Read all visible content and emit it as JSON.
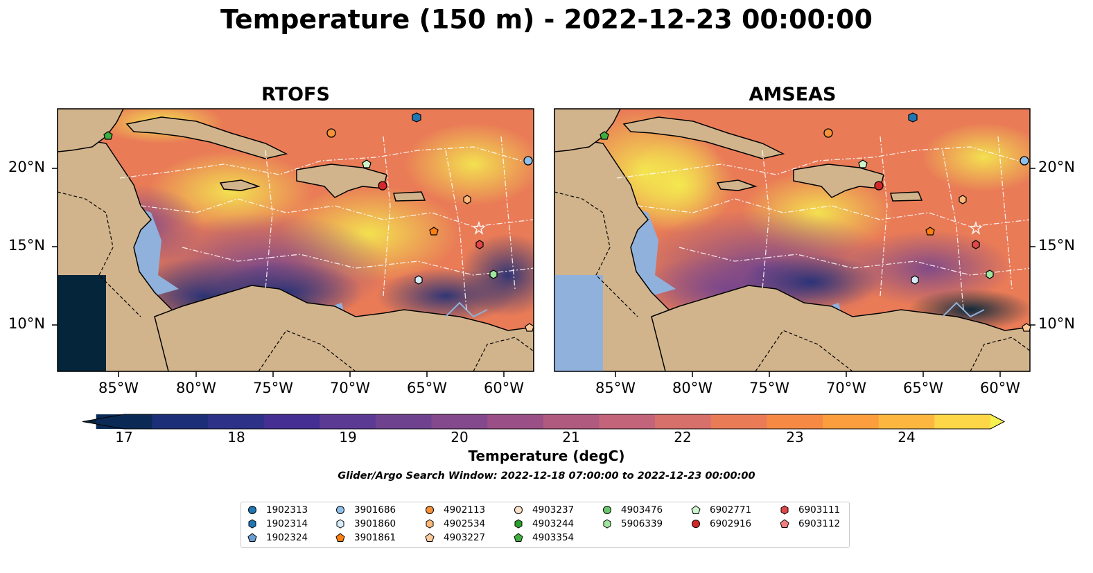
{
  "title": "Temperature (150 m) - 2022-12-23 00:00:00",
  "panels": [
    {
      "title": "RTOFS"
    },
    {
      "title": "AMSEAS"
    }
  ],
  "axes": {
    "x_ticks": [
      "85°W",
      "80°W",
      "75°W",
      "70°W",
      "65°W",
      "60°W"
    ],
    "y_ticks": [
      "20°N",
      "15°N",
      "10°N"
    ]
  },
  "colorbar": {
    "label": "Temperature (degC)",
    "ticks": [
      "17",
      "18",
      "19",
      "20",
      "21",
      "22",
      "23",
      "24"
    ],
    "min": 16.5,
    "max": 25,
    "colors": [
      "#04253a",
      "#0a2a55",
      "#1d2e78",
      "#2e3188",
      "#452f92",
      "#5b3a93",
      "#6f4290",
      "#84498c",
      "#9a5086",
      "#b05a80",
      "#c4647a",
      "#d76f6b",
      "#e97b57",
      "#f68a45",
      "#fc9e3d",
      "#fdb740",
      "#fed748",
      "#f5f24f"
    ]
  },
  "search_window": "Glider/Argo Search Window: 2022-12-18 07:00:00 to 2022-12-23 00:00:00",
  "legend": [
    {
      "id": "1902313",
      "marker": "circle",
      "color": "#1f77b4"
    },
    {
      "id": "1902314",
      "marker": "hexagon",
      "color": "#1f77b4"
    },
    {
      "id": "1902324",
      "marker": "pentagon",
      "color": "#6a9fd4"
    },
    {
      "id": "3901686",
      "marker": "circle",
      "color": "#8ec0ea"
    },
    {
      "id": "3901860",
      "marker": "hexagon",
      "color": "#d6ecfa"
    },
    {
      "id": "3901861",
      "marker": "pentagon",
      "color": "#ff7f0e"
    },
    {
      "id": "4902113",
      "marker": "circle",
      "color": "#f7923a"
    },
    {
      "id": "4902534",
      "marker": "hexagon",
      "color": "#fdb87a"
    },
    {
      "id": "4903227",
      "marker": "pentagon",
      "color": "#fdc99a"
    },
    {
      "id": "4903237",
      "marker": "circle",
      "color": "#fde0c8"
    },
    {
      "id": "4903244",
      "marker": "hexagon",
      "color": "#2ca02c"
    },
    {
      "id": "4903354",
      "marker": "pentagon",
      "color": "#3fae3f"
    },
    {
      "id": "4903476",
      "marker": "circle",
      "color": "#6cc66c"
    },
    {
      "id": "5906339",
      "marker": "hexagon",
      "color": "#9fe59f"
    },
    {
      "id": "6902771",
      "marker": "pentagon",
      "color": "#ccf5cc"
    },
    {
      "id": "6902916",
      "marker": "circle",
      "color": "#d62728"
    },
    {
      "id": "6903111",
      "marker": "hexagon",
      "color": "#e04848"
    },
    {
      "id": "6903112",
      "marker": "pentagon",
      "color": "#f08080"
    }
  ],
  "chart_data": {
    "type": "heatmap",
    "xlim": [
      -89,
      -58
    ],
    "ylim": [
      7,
      24
    ],
    "units": "degC",
    "vmin": 16.5,
    "vmax": 25,
    "grid": true
  }
}
